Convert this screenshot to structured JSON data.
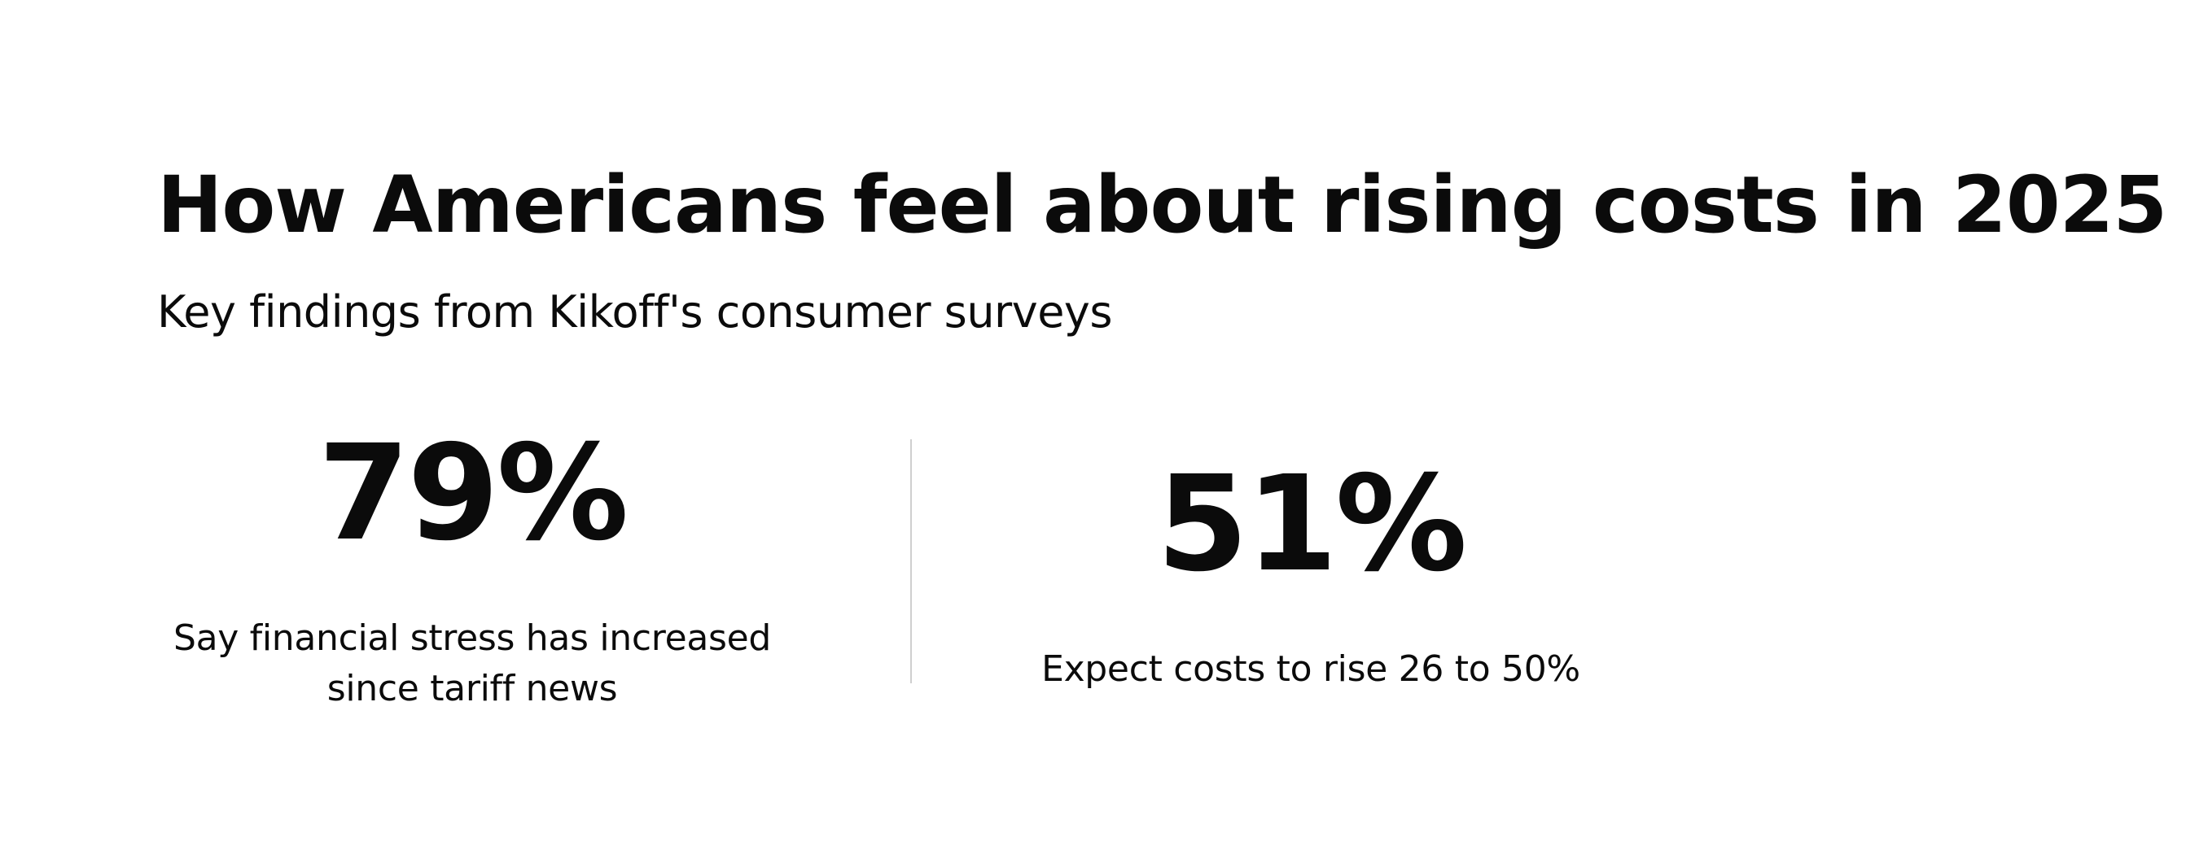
{
  "header": {
    "title": "How Americans feel about rising costs in 2025",
    "subtitle": "Key findings from Kikoff's consumer surveys"
  },
  "stats": [
    {
      "value": "79%",
      "caption_line1": "Say financial stress has increased",
      "caption_line2": "since tariff news"
    },
    {
      "value": "51%",
      "caption_line1": "Expect costs to rise 26 to 50%"
    }
  ],
  "colors": {
    "text": "#0b0b0b",
    "background": "#ffffff",
    "divider": "#cfcfcf"
  }
}
